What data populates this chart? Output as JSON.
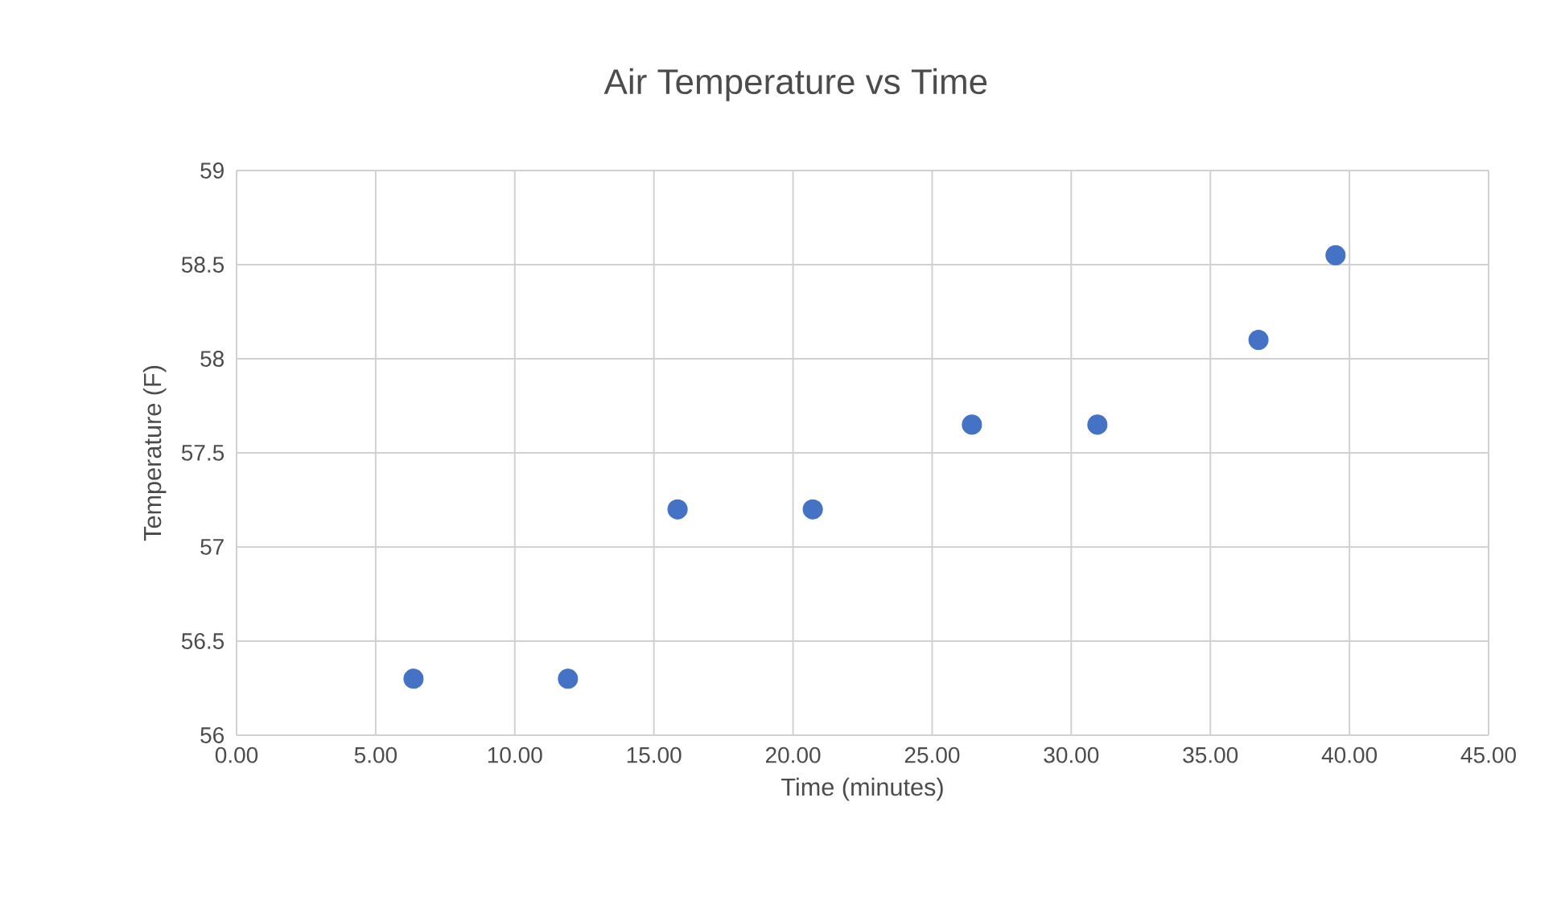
{
  "chart_data": {
    "type": "scatter",
    "title": "Air Temperature vs Time",
    "xlabel": "Time (minutes)",
    "ylabel": "Temperature (F)",
    "series": [
      {
        "color": "#4472c4",
        "x": [
          6.36,
          11.91,
          15.85,
          20.71,
          26.43,
          30.94,
          36.73,
          39.5
        ],
        "values": [
          56.3,
          56.3,
          57.2,
          57.2,
          57.65,
          57.65,
          58.1,
          58.55
        ]
      }
    ],
    "xlim": [
      0,
      45
    ],
    "xticks": [
      {
        "value": 0,
        "label": "0.00"
      },
      {
        "value": 5,
        "label": "5.00"
      },
      {
        "value": 10,
        "label": "10.00"
      },
      {
        "value": 15,
        "label": "15.00"
      },
      {
        "value": 20,
        "label": "20.00"
      },
      {
        "value": 25,
        "label": "25.00"
      },
      {
        "value": 30,
        "label": "30.00"
      },
      {
        "value": 35,
        "label": "35.00"
      },
      {
        "value": 40,
        "label": "40.00"
      },
      {
        "value": 45,
        "label": "45.00"
      }
    ],
    "ylim": [
      56,
      59
    ],
    "yticks": [
      56,
      56.5,
      57,
      57.5,
      58,
      58.5,
      59
    ],
    "grid": true,
    "marker": "circle"
  }
}
